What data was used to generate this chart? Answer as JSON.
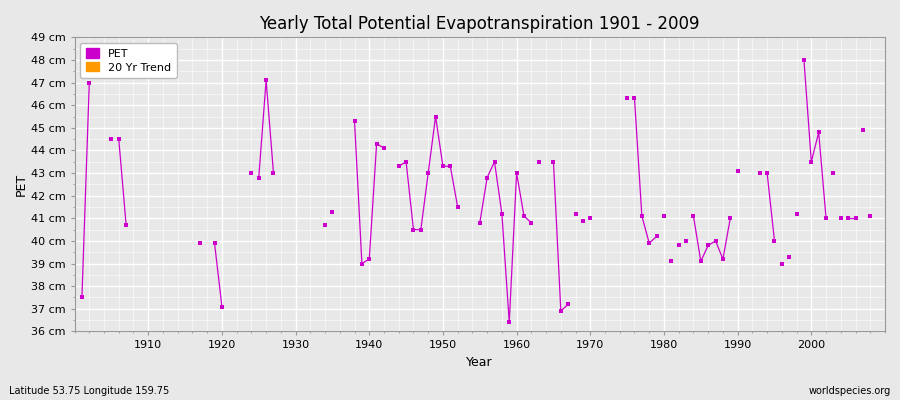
{
  "title": "Yearly Total Potential Evapotranspiration 1901 - 2009",
  "xlabel": "Year",
  "ylabel": "PET",
  "subtitle": "Latitude 53.75 Longitude 159.75",
  "watermark": "worldspecies.org",
  "ylim": [
    36,
    49
  ],
  "xlim": [
    1900,
    2010
  ],
  "ytick_labels": [
    "36 cm",
    "37 cm",
    "38 cm",
    "39 cm",
    "40 cm",
    "41 cm",
    "42 cm",
    "43 cm",
    "44 cm",
    "45 cm",
    "46 cm",
    "47 cm",
    "48 cm",
    "49 cm"
  ],
  "ytick_values": [
    36,
    37,
    38,
    39,
    40,
    41,
    42,
    43,
    44,
    45,
    46,
    47,
    48,
    49
  ],
  "pet_color": "#cc00cc",
  "trend_color": "#ff9900",
  "background_color": "#e8e8e8",
  "plot_bg_color": "#e8e8e8",
  "grid_color": "#ffffff",
  "xticks": [
    1910,
    1920,
    1930,
    1940,
    1950,
    1960,
    1970,
    1980,
    1990,
    2000
  ],
  "pet_years": [
    1901,
    1902,
    1906,
    1907,
    1919,
    1920,
    1925,
    1926,
    1927,
    1935,
    1938,
    1939,
    1940,
    1941,
    1942,
    1944,
    1945,
    1946,
    1947,
    1948,
    1949,
    1950,
    1951,
    1952,
    1955,
    1956,
    1957,
    1958,
    1959,
    1960,
    1961,
    1962,
    1965,
    1966,
    1967,
    1976,
    1977,
    1978,
    1979,
    1984,
    1985,
    1986,
    1987,
    1988,
    1989,
    1994,
    1995,
    1999,
    2000,
    2001,
    2002,
    2005,
    2006
  ],
  "pet_values": [
    37.5,
    47.0,
    44.5,
    40.7,
    39.9,
    37.1,
    42.8,
    47.1,
    43.0,
    41.3,
    45.3,
    39.0,
    39.2,
    44.3,
    44.1,
    43.3,
    43.5,
    40.5,
    40.5,
    43.0,
    45.5,
    43.3,
    43.3,
    41.5,
    40.8,
    42.8,
    43.5,
    41.2,
    36.4,
    43.0,
    41.1,
    40.8,
    43.5,
    36.9,
    37.2,
    46.3,
    41.1,
    39.9,
    40.2,
    41.1,
    39.1,
    39.8,
    40.0,
    39.2,
    41.0,
    43.0,
    40.0,
    48.0,
    43.5,
    44.8,
    41.0,
    41.0,
    41.0
  ],
  "isolated_years": [
    1905,
    1917,
    1924,
    1934,
    1963,
    1968,
    1969,
    1970,
    1975,
    1980,
    1981,
    1982,
    1983,
    1990,
    1993,
    1996,
    1997,
    1998,
    2003,
    2004,
    2007,
    2008
  ],
  "isolated_values": [
    44.5,
    39.9,
    43.0,
    40.7,
    43.5,
    41.2,
    40.9,
    41.0,
    46.3,
    41.1,
    39.1,
    39.8,
    40.0,
    43.1,
    43.0,
    39.0,
    39.3,
    41.2,
    43.0,
    41.0,
    44.9,
    41.1
  ]
}
